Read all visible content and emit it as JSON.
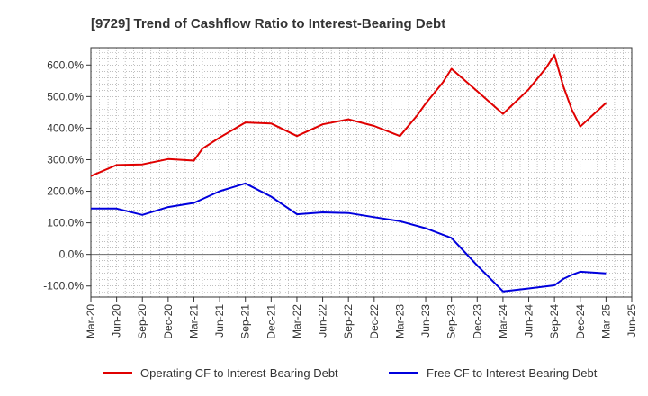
{
  "chart_data": {
    "type": "line",
    "title": "[9729]  Trend of Cashflow Ratio to Interest-Bearing Debt",
    "x_tick_labels": [
      "Mar-20",
      "Jun-20",
      "Sep-20",
      "Dec-20",
      "Mar-21",
      "Jun-21",
      "Sep-21",
      "Dec-21",
      "Mar-22",
      "Jun-22",
      "Sep-22",
      "Dec-22",
      "Mar-23",
      "Jun-23",
      "Sep-23",
      "Dec-23",
      "Mar-24",
      "Jun-24",
      "Sep-24",
      "Dec-24",
      "Mar-25",
      "Jun-25"
    ],
    "y_tick_labels": [
      "-100.0%",
      "0.0%",
      "100.0%",
      "200.0%",
      "300.0%",
      "400.0%",
      "500.0%",
      "600.0%"
    ],
    "y_ticks": [
      -100,
      0,
      100,
      200,
      300,
      400,
      500,
      600
    ],
    "ylim": [
      -135,
      655
    ],
    "grid": true,
    "legend_position": "bottom",
    "series": [
      {
        "name": "Operating CF to Interest-Bearing Debt",
        "color": "#e00000",
        "x": [
          "Mar-20",
          "Jun-20",
          "Sep-20",
          "Dec-20",
          "Mar-21",
          "Apr-21",
          "Jun-21",
          "Sep-21",
          "Dec-21",
          "Mar-22",
          "Jun-22",
          "Sep-22",
          "Dec-22",
          "Mar-23",
          "May-23",
          "Jun-23",
          "Aug-23",
          "Sep-23",
          "Dec-23",
          "Mar-24",
          "Jun-24",
          "Aug-24",
          "Sep-24",
          "Oct-24",
          "Nov-24",
          "Dec-24",
          "Mar-25"
        ],
        "values": [
          248,
          283,
          285,
          302,
          297,
          335,
          370,
          418,
          415,
          375,
          412,
          428,
          407,
          375,
          440,
          478,
          545,
          588,
          517,
          445,
          523,
          590,
          632,
          535,
          460,
          405,
          480
        ]
      },
      {
        "name": "Free CF to Interest-Bearing Debt",
        "color": "#0000dd",
        "x": [
          "Mar-20",
          "Jun-20",
          "Sep-20",
          "Dec-20",
          "Mar-21",
          "Jun-21",
          "Sep-21",
          "Dec-21",
          "Mar-22",
          "Jun-22",
          "Sep-22",
          "Dec-22",
          "Mar-23",
          "Jun-23",
          "Sep-23",
          "Dec-23",
          "Mar-24",
          "Jun-24",
          "Sep-24",
          "Oct-24",
          "Nov-24",
          "Dec-24",
          "Mar-25"
        ],
        "values": [
          145,
          145,
          125,
          150,
          163,
          200,
          225,
          183,
          127,
          133,
          131,
          118,
          105,
          83,
          52,
          -35,
          -117,
          -108,
          -98,
          -78,
          -65,
          -55,
          -60
        ]
      }
    ]
  }
}
